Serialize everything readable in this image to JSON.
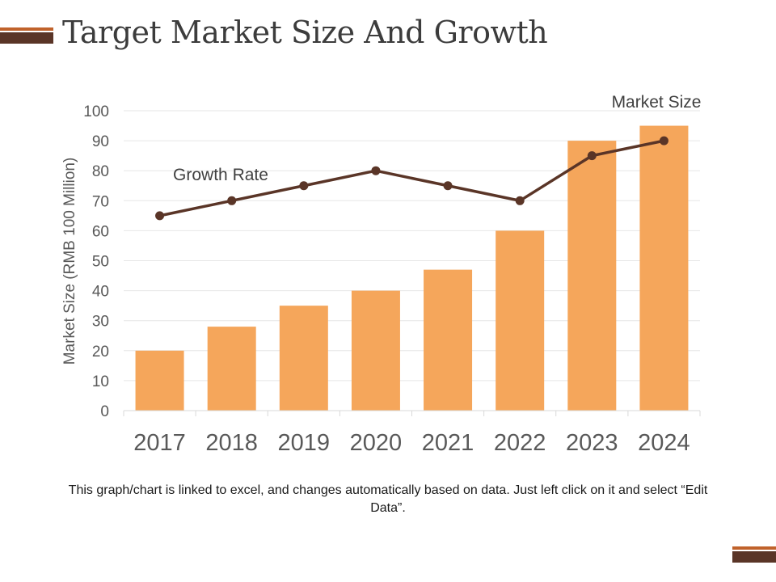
{
  "slide": {
    "title": "Target Market Size And Growth",
    "caption": "This graph/chart is linked to excel, and changes automatically based on data. Just left click on it and select “Edit Data”."
  },
  "colors": {
    "bar": "#f5a65b",
    "line": "#5a3527",
    "accent_dark": "#5a3527",
    "accent_light": "#c0622b"
  },
  "chart_data": {
    "type": "bar",
    "title": "Target Market Size And Growth",
    "categories": [
      "2017",
      "2018",
      "2019",
      "2020",
      "2021",
      "2022",
      "2023",
      "2024"
    ],
    "series": [
      {
        "name": "Market Size",
        "type": "bar",
        "values": [
          20,
          28,
          35,
          40,
          47,
          60,
          90,
          95
        ]
      },
      {
        "name": "Growth Rate",
        "type": "line",
        "values": [
          65,
          70,
          75,
          80,
          75,
          70,
          85,
          90
        ]
      }
    ],
    "ylabel": "Market Size (RMB 100 Million)",
    "xlabel": "",
    "ylim": [
      0,
      100
    ],
    "yticks": [
      0,
      10,
      20,
      30,
      40,
      50,
      60,
      70,
      80,
      90,
      100
    ],
    "grid": true,
    "annotations": [
      "Market Size",
      "Growth Rate"
    ]
  }
}
